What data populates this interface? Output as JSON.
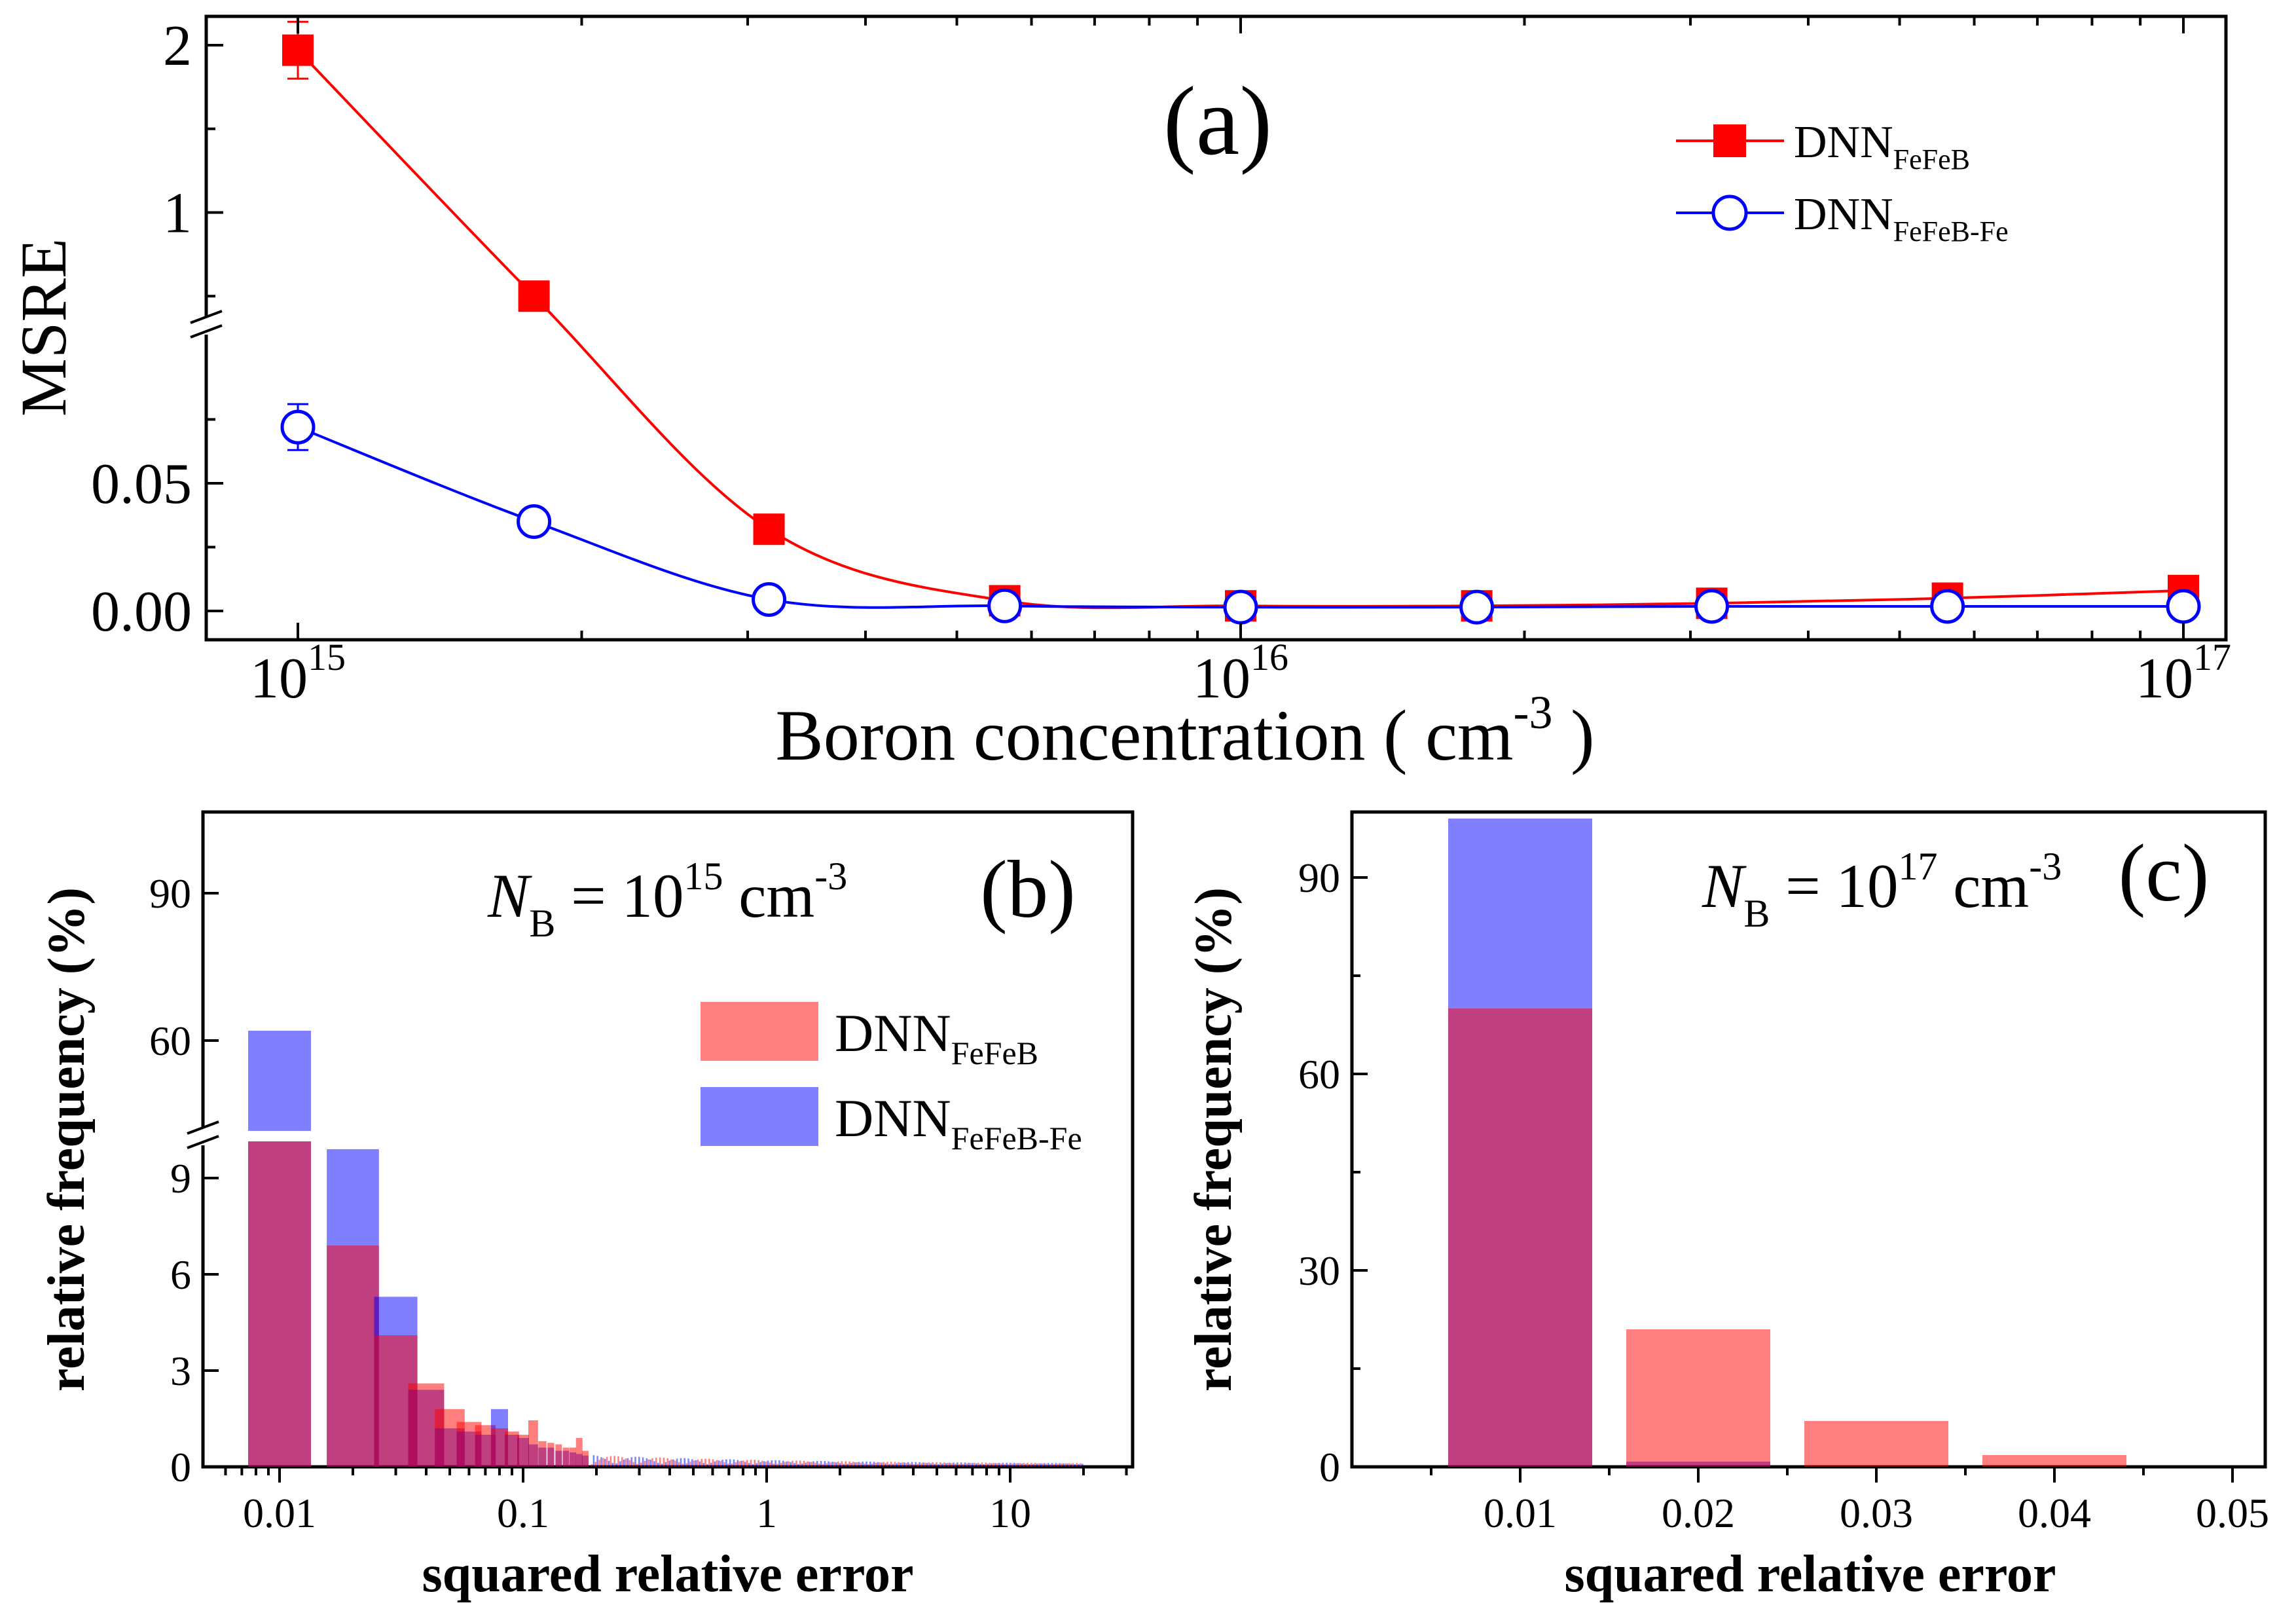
{
  "chart_data": [
    {
      "panel_label": "(a)",
      "type": "line",
      "xlabel": "Boron concentration ( cm",
      "xlabel_exp": "-3",
      "xlabel_close": " )",
      "ylabel": "MSRE",
      "x_scale": "log",
      "x_ticks": [
        {
          "base": "10",
          "exp": "15",
          "value": 1000000000000000.0
        },
        {
          "base": "10",
          "exp": "16",
          "value": 1e+16
        },
        {
          "base": "10",
          "exp": "17",
          "value": 1e+17
        }
      ],
      "y_axis_break": true,
      "y_ticks_lower": [
        "0.00",
        "0.05"
      ],
      "y_ticks_upper": [
        "1",
        "2"
      ],
      "x": [
        1000000000000000.0,
        1780000000000000.0,
        3160000000000000.0,
        5620000000000000.0,
        1e+16,
        1.78e+16,
        3.16e+16,
        5.62e+16,
        1e+17
      ],
      "series": [
        {
          "name": "DNN",
          "sub": "FeFeB",
          "color": "#ff0000",
          "marker": "filled-square",
          "values": [
            1.97,
            0.5,
            0.032,
            0.004,
            0.002,
            0.002,
            0.003,
            0.005,
            0.008
          ],
          "err": [
            0.17,
            0,
            0,
            0,
            0,
            0,
            0,
            0,
            0
          ]
        },
        {
          "name": "DNN",
          "sub": "FeFeB-Fe",
          "color": "#0000ff",
          "marker": "open-circle",
          "values": [
            0.072,
            0.035,
            0.0045,
            0.002,
            0.0015,
            0.0015,
            0.0018,
            0.0018,
            0.0018
          ],
          "err": [
            0.009,
            0,
            0,
            0,
            0,
            0,
            0,
            0,
            0
          ]
        }
      ],
      "legend_position": "top-right"
    },
    {
      "panel_label": "(b)",
      "type": "bar",
      "annotation": {
        "symbol": "N",
        "sub": "B",
        "eq": " = 10",
        "exp": "15",
        "unit": " cm",
        "unit_exp": "-3"
      },
      "xlabel": "squared relative error",
      "ylabel": "relative frequency (%)",
      "x_scale": "log",
      "x_ticks": [
        "0.01",
        "0.1",
        "1",
        "10"
      ],
      "y_axis_break": true,
      "y_ticks_lower": [
        "0",
        "3",
        "6",
        "9"
      ],
      "y_ticks_upper": [
        "60",
        "90"
      ],
      "x": [
        0.01,
        0.02,
        0.03,
        0.04,
        0.05,
        0.06,
        0.07,
        0.08,
        0.09,
        0.1,
        0.11,
        0.12,
        0.13,
        0.14,
        0.15,
        0.16,
        0.17,
        0.18
      ],
      "series": [
        {
          "name": "DNN",
          "sub": "FeFeB",
          "color": "#ff8080",
          "values": [
            41,
            6.9,
            4.1,
            2.6,
            1.8,
            1.4,
            1.3,
            1.2,
            1.1,
            1.0,
            1.45,
            0.8,
            0.75,
            0.7,
            0.6,
            0.6,
            0.9,
            0.5
          ]
        },
        {
          "name": "DNN",
          "sub": "FeFeB-Fe",
          "color": "#8080ff",
          "values": [
            62,
            9.9,
            5.3,
            2.4,
            1.2,
            1.1,
            1.0,
            1.8,
            1.0,
            0.9,
            0.7,
            0.6,
            0.6,
            0.5,
            0.5,
            0.45,
            0.4,
            0.35
          ]
        }
      ],
      "legend_position": "right"
    },
    {
      "panel_label": "(c)",
      "type": "bar",
      "annotation": {
        "symbol": "N",
        "sub": "B",
        "eq": " = 10",
        "exp": "17",
        "unit": " cm",
        "unit_exp": "-3"
      },
      "xlabel": "squared relative error",
      "ylabel": "relative frequency (%)",
      "categories": [
        "0.01",
        "0.02",
        "0.03",
        "0.04",
        "0.05"
      ],
      "y_ticks": [
        "0",
        "30",
        "60",
        "90"
      ],
      "ylim": [
        0,
        100
      ],
      "series": [
        {
          "name": "DNN",
          "sub": "FeFeB",
          "color": "#ff8080",
          "values": [
            70,
            21,
            7,
            1.8,
            0
          ]
        },
        {
          "name": "DNN",
          "sub": "FeFeB-Fe",
          "color": "#8080ff",
          "values": [
            99,
            0.8,
            0,
            0,
            0
          ]
        }
      ]
    }
  ]
}
